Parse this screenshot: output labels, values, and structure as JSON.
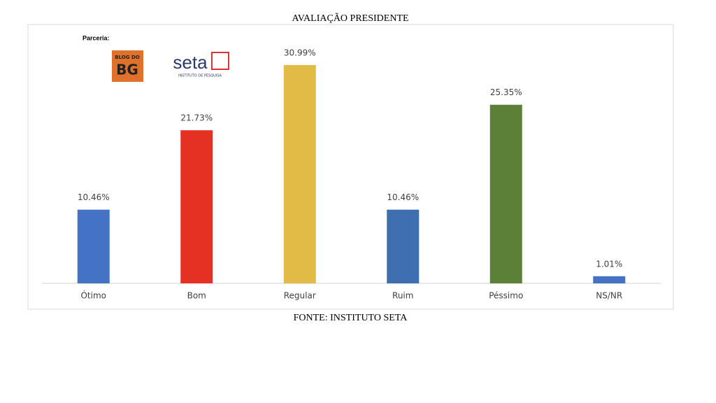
{
  "chart_data": {
    "type": "bar",
    "title": "AVALIAÇÃO PRESIDENTE",
    "source": "FONTE: INSTITUTO SETA",
    "partner_label": "Parceria:",
    "logos": [
      "BLOG DO",
      "BG",
      "seta",
      "INSTITUTO DE PESQUISA"
    ],
    "categories": [
      "Ótimo",
      "Bom",
      "Regular",
      "Ruim",
      "Péssimo",
      "NS/NR"
    ],
    "values": [
      10.46,
      21.73,
      30.99,
      10.46,
      25.35,
      1.01
    ],
    "value_labels": [
      "10.46%",
      "21.73%",
      "30.99%",
      "10.46%",
      "25.35%",
      "1.01%"
    ],
    "colors": [
      "#4472c4",
      "#e53024",
      "#e2bb47",
      "#3f6fb0",
      "#5d8039",
      "#4472c4"
    ]
  }
}
